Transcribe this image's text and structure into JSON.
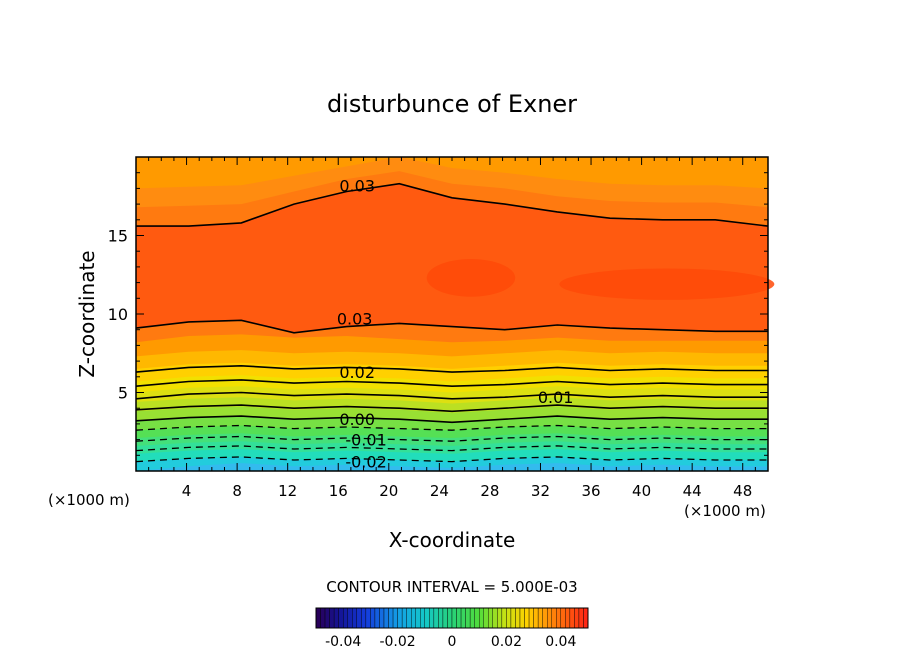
{
  "chart_data": {
    "type": "heatmap",
    "title": "disturbunce of Exner",
    "xlabel": "X-coordinate",
    "ylabel": "Z-coordinate",
    "x_unit_left": "(×1000 m)",
    "x_unit_right": "(×1000 m)",
    "xlim": [
      0,
      50
    ],
    "ylim": [
      0,
      20
    ],
    "x_ticks": [
      4,
      8,
      12,
      16,
      20,
      24,
      28,
      32,
      36,
      40,
      44,
      48
    ],
    "y_ticks": [
      5,
      10,
      15
    ],
    "contour_interval_text": "CONTOUR INTERVAL = 5.000E-03",
    "colorbar": {
      "range": [
        -0.05,
        0.05
      ],
      "ticks": [
        -0.04,
        -0.02,
        0,
        0.02,
        0.04
      ],
      "tick_labels": [
        "-0.04",
        "-0.02",
        "0",
        "0.02",
        "0.04"
      ]
    },
    "contour_labels": [
      {
        "text": "0.03",
        "x": 17.5,
        "z": 18.2
      },
      {
        "text": "0.03",
        "x": 17.3,
        "z": 9.7
      },
      {
        "text": "0.02",
        "x": 17.5,
        "z": 6.3
      },
      {
        "text": "0.01",
        "x": 33.2,
        "z": 4.7
      },
      {
        "text": "0.00",
        "x": 17.5,
        "z": 3.3
      },
      {
        "text": "-0.01",
        "x": 18.2,
        "z": 2.0
      },
      {
        "text": "-0.02",
        "x": 18.2,
        "z": 0.6
      }
    ],
    "bands": [
      {
        "color": "#33bbee",
        "z": [
          0.0,
          0.3,
          0.5,
          0.3,
          0.4,
          0.3,
          0.2,
          0.4,
          0.5,
          0.3,
          0.4,
          0.3,
          0.3
        ]
      },
      {
        "color": "#22ccdd",
        "z": [
          0.6,
          0.8,
          0.9,
          0.7,
          0.8,
          0.7,
          0.6,
          0.8,
          0.9,
          0.7,
          0.8,
          0.7,
          0.7
        ]
      },
      {
        "color": "#22ddbb",
        "z": [
          1.1,
          1.3,
          1.4,
          1.2,
          1.3,
          1.2,
          1.1,
          1.3,
          1.4,
          1.2,
          1.3,
          1.2,
          1.2
        ]
      },
      {
        "color": "#33e099",
        "z": [
          1.6,
          1.8,
          1.9,
          1.7,
          1.8,
          1.7,
          1.6,
          1.8,
          1.9,
          1.7,
          1.8,
          1.7,
          1.7
        ]
      },
      {
        "color": "#44e07a",
        "z": [
          2.1,
          2.3,
          2.4,
          2.2,
          2.3,
          2.2,
          2.1,
          2.3,
          2.4,
          2.2,
          2.3,
          2.2,
          2.2
        ]
      },
      {
        "color": "#55e055",
        "z": [
          2.6,
          2.8,
          2.9,
          2.7,
          2.8,
          2.7,
          2.6,
          2.8,
          2.9,
          2.7,
          2.8,
          2.7,
          2.7
        ]
      },
      {
        "color": "#77e044",
        "z": [
          3.2,
          3.4,
          3.5,
          3.3,
          3.4,
          3.3,
          3.1,
          3.3,
          3.5,
          3.3,
          3.4,
          3.3,
          3.3
        ]
      },
      {
        "color": "#99e033",
        "z": [
          3.8,
          4.0,
          4.1,
          3.9,
          4.0,
          3.9,
          3.7,
          3.9,
          4.1,
          3.9,
          4.0,
          3.9,
          3.9
        ]
      },
      {
        "color": "#bbe022",
        "z": [
          4.4,
          4.6,
          4.7,
          4.5,
          4.6,
          4.5,
          4.3,
          4.5,
          4.7,
          4.5,
          4.6,
          4.5,
          4.5
        ]
      },
      {
        "color": "#dde011",
        "z": [
          5.0,
          5.3,
          5.4,
          5.2,
          5.3,
          5.2,
          5.0,
          5.2,
          5.4,
          5.2,
          5.3,
          5.2,
          5.2
        ]
      },
      {
        "color": "#f2e000",
        "z": [
          5.7,
          6.0,
          6.1,
          5.9,
          6.0,
          5.9,
          5.7,
          5.9,
          6.1,
          5.9,
          6.0,
          5.9,
          5.9
        ]
      },
      {
        "color": "#ffd000",
        "z": [
          6.5,
          6.8,
          6.9,
          6.7,
          6.8,
          6.7,
          6.5,
          6.7,
          6.9,
          6.7,
          6.8,
          6.7,
          6.7
        ]
      },
      {
        "color": "#ffb800",
        "z": [
          7.3,
          7.6,
          7.7,
          7.5,
          7.6,
          7.5,
          7.3,
          7.5,
          7.7,
          7.5,
          7.6,
          7.5,
          7.5
        ]
      },
      {
        "color": "#ff9a00",
        "z": [
          8.2,
          8.6,
          8.7,
          8.5,
          8.6,
          8.4,
          8.2,
          8.3,
          8.5,
          8.3,
          8.3,
          8.3,
          8.3
        ]
      },
      {
        "color": "#ff7a10",
        "z": [
          9.1,
          9.5,
          9.6,
          8.8,
          9.2,
          9.4,
          9.2,
          9.0,
          9.3,
          9.1,
          9.0,
          8.9,
          8.9
        ]
      },
      {
        "color": "#ff5a10",
        "z": [
          20,
          20,
          20,
          20,
          20,
          20,
          20,
          20,
          20,
          20,
          20,
          20,
          20
        ]
      }
    ],
    "upper_bands": [
      {
        "color": "#ff7a10",
        "z": [
          15.6,
          15.6,
          15.8,
          17.0,
          17.8,
          18.3,
          17.4,
          17.0,
          16.5,
          16.1,
          16.0,
          16.0,
          15.6
        ]
      },
      {
        "color": "#ff8c10",
        "z": [
          16.8,
          16.9,
          17.0,
          17.8,
          18.6,
          19.1,
          18.3,
          18.0,
          17.5,
          17.2,
          17.1,
          17.1,
          16.8
        ]
      },
      {
        "color": "#ff9a00",
        "z": [
          18.0,
          18.1,
          18.2,
          18.8,
          19.4,
          20,
          19.3,
          19.0,
          18.6,
          18.3,
          18.2,
          18.2,
          18.0
        ]
      }
    ],
    "contour_lines": [
      {
        "style": "solid",
        "z": [
          15.6,
          15.6,
          15.8,
          17.0,
          17.8,
          18.3,
          17.4,
          17.0,
          16.5,
          16.1,
          16.0,
          16.0,
          15.6
        ]
      },
      {
        "style": "solid",
        "z": [
          9.1,
          9.5,
          9.6,
          8.8,
          9.2,
          9.4,
          9.2,
          9.0,
          9.3,
          9.1,
          9.0,
          8.9,
          8.9
        ]
      },
      {
        "style": "solid",
        "z": [
          6.3,
          6.6,
          6.7,
          6.5,
          6.6,
          6.5,
          6.3,
          6.4,
          6.6,
          6.4,
          6.5,
          6.4,
          6.4
        ]
      },
      {
        "style": "solid",
        "z": [
          5.4,
          5.7,
          5.8,
          5.6,
          5.7,
          5.6,
          5.4,
          5.5,
          5.7,
          5.5,
          5.6,
          5.5,
          5.5
        ]
      },
      {
        "style": "solid",
        "z": [
          4.6,
          4.9,
          5.0,
          4.8,
          4.9,
          4.8,
          4.6,
          4.7,
          4.9,
          4.7,
          4.8,
          4.7,
          4.7
        ]
      },
      {
        "style": "solid",
        "z": [
          3.9,
          4.1,
          4.2,
          4.0,
          4.1,
          4.0,
          3.8,
          4.0,
          4.2,
          4.0,
          4.1,
          4.0,
          4.0
        ]
      },
      {
        "style": "solid",
        "z": [
          3.2,
          3.4,
          3.5,
          3.3,
          3.4,
          3.3,
          3.1,
          3.3,
          3.5,
          3.3,
          3.4,
          3.3,
          3.3
        ]
      },
      {
        "style": "dashed",
        "z": [
          2.6,
          2.8,
          2.9,
          2.7,
          2.8,
          2.7,
          2.6,
          2.8,
          2.9,
          2.7,
          2.8,
          2.7,
          2.7
        ]
      },
      {
        "style": "dashed",
        "z": [
          1.9,
          2.1,
          2.2,
          2.0,
          2.1,
          2.0,
          1.9,
          2.1,
          2.2,
          2.0,
          2.1,
          2.0,
          2.0
        ]
      },
      {
        "style": "dashed",
        "z": [
          1.3,
          1.5,
          1.6,
          1.4,
          1.5,
          1.4,
          1.3,
          1.5,
          1.6,
          1.4,
          1.5,
          1.4,
          1.4
        ]
      },
      {
        "style": "dashed",
        "z": [
          0.6,
          0.8,
          0.9,
          0.7,
          0.8,
          0.7,
          0.6,
          0.8,
          0.9,
          0.7,
          0.8,
          0.7,
          0.7
        ]
      }
    ],
    "patches": [
      {
        "color": "#ff4a08",
        "cx": 26.5,
        "cz": 12.3,
        "rx": 3.5,
        "rz": 1.2
      },
      {
        "color": "#ff4a08",
        "cx": 42.0,
        "cz": 11.9,
        "rx": 8.5,
        "rz": 1.0
      }
    ]
  }
}
